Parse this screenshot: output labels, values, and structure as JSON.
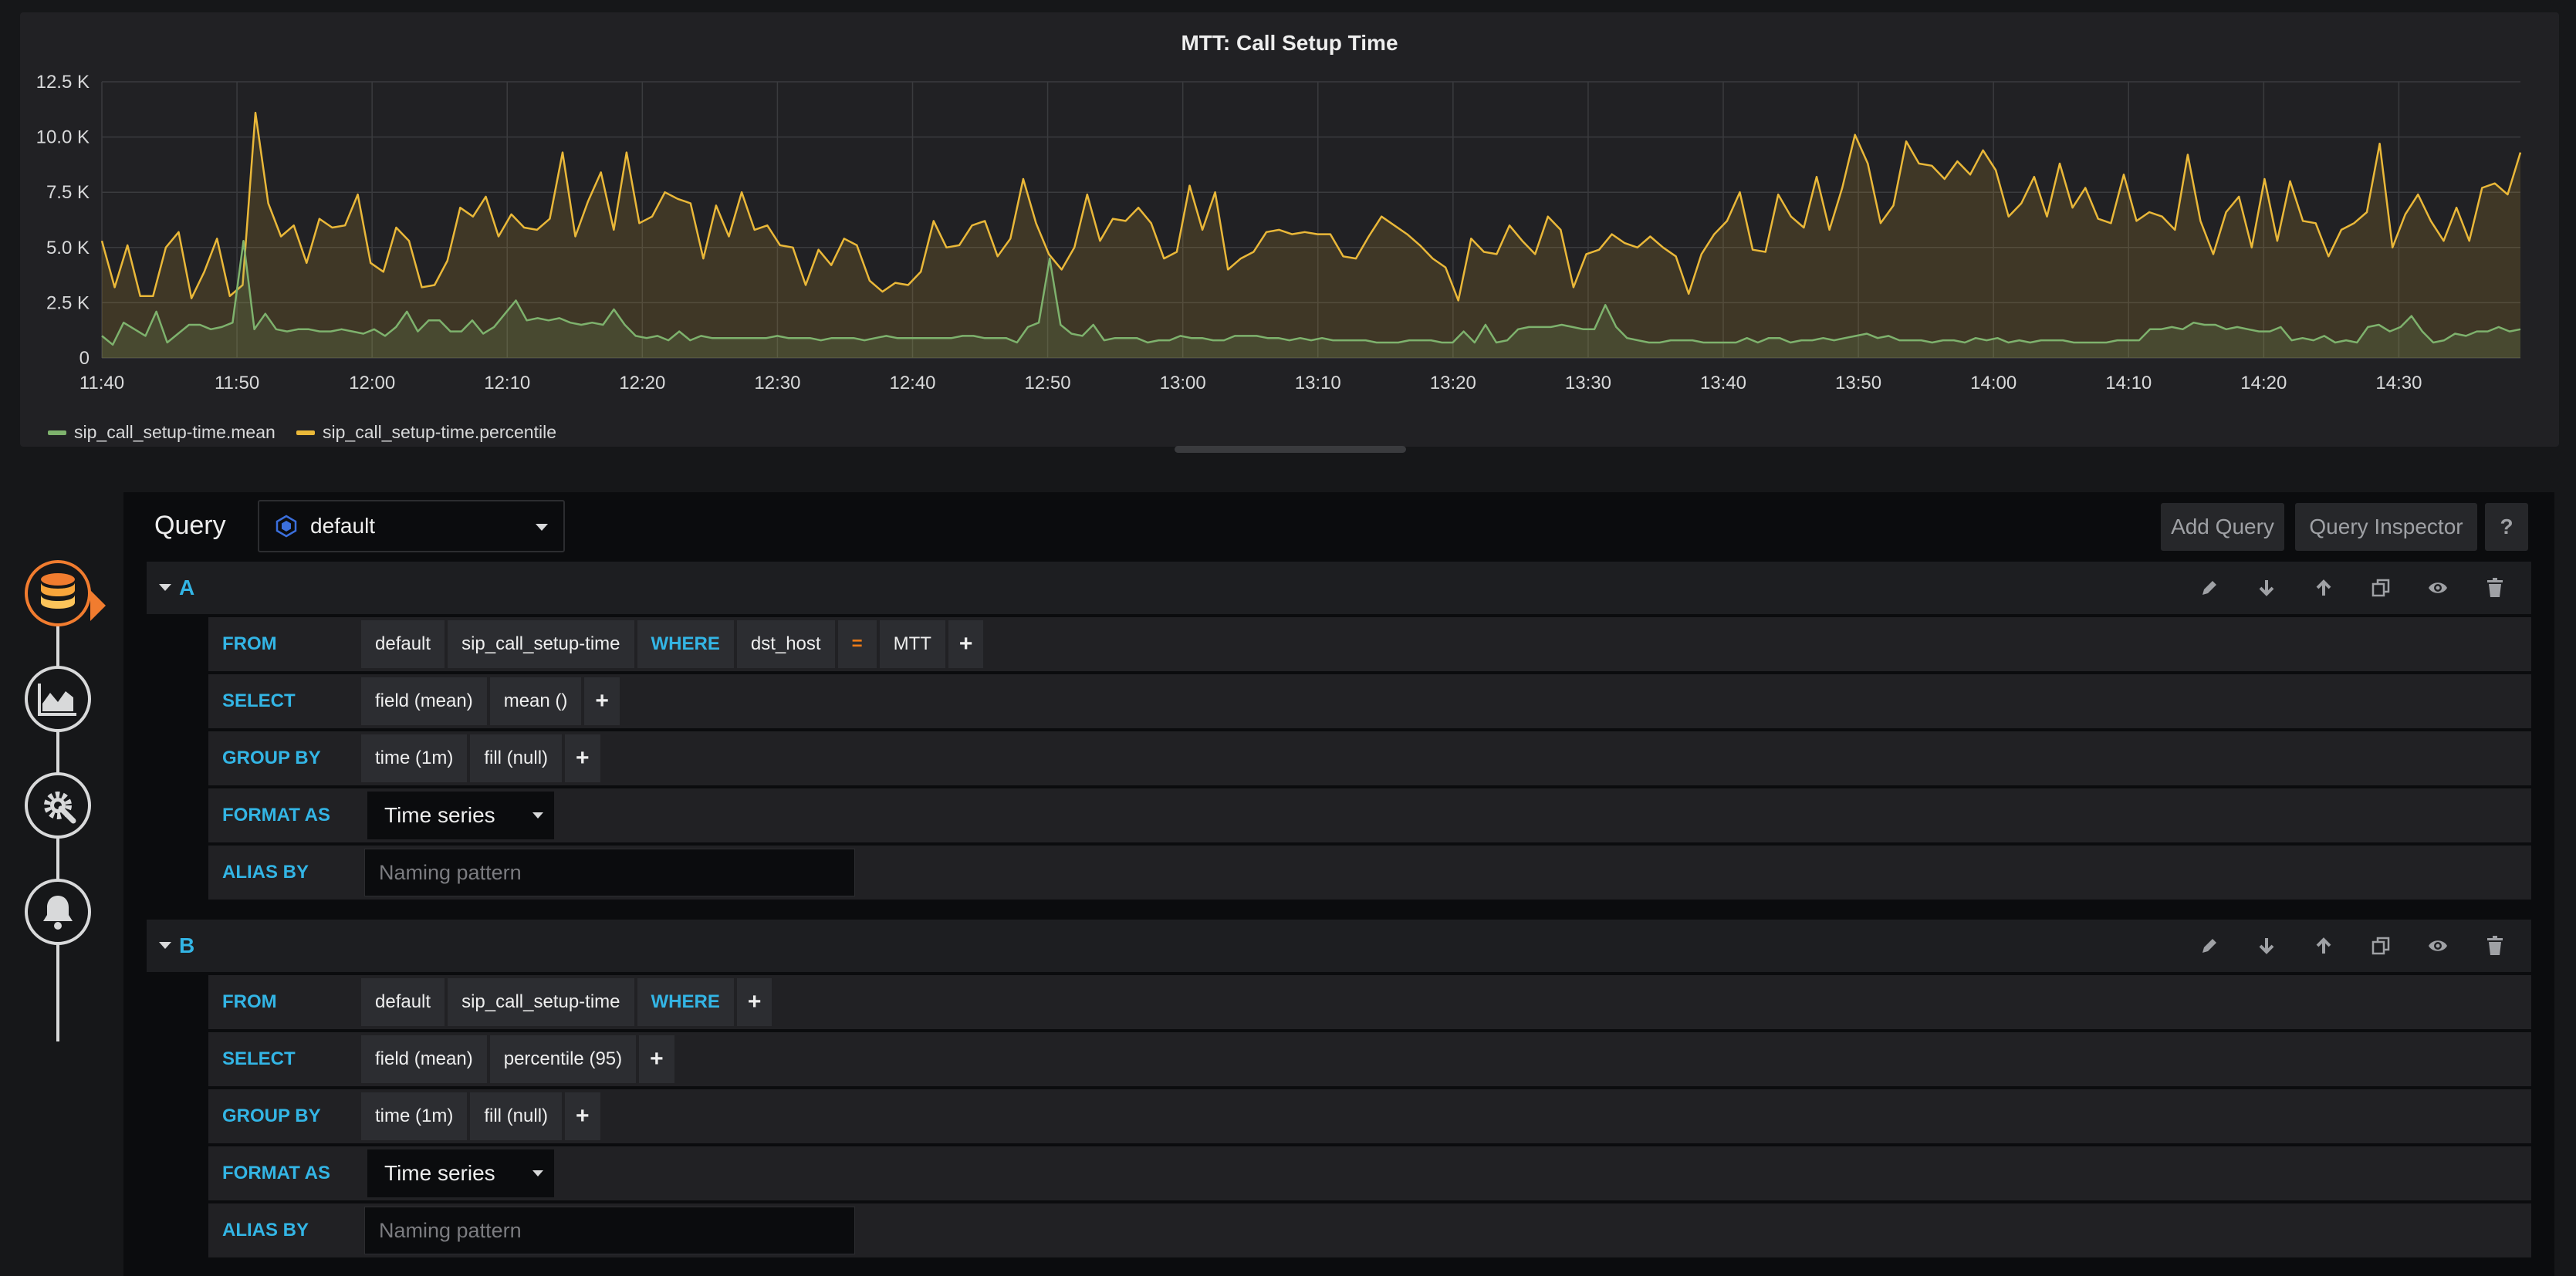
{
  "panel": {
    "title": "MTT: Call Setup Time"
  },
  "colors": {
    "mean": "#7eb26d",
    "percentile": "#eab839",
    "accent": "#33b5e5",
    "active_nav": "#f17c2f"
  },
  "chart_data": {
    "type": "area",
    "title": "MTT: Call Setup Time",
    "y_ticks": [
      "0",
      "2.5 K",
      "5.0 K",
      "7.5 K",
      "10.0 K",
      "12.5 K"
    ],
    "ylim": [
      0,
      12500
    ],
    "x_ticks": [
      "11:40",
      "11:50",
      "12:00",
      "12:10",
      "12:20",
      "12:30",
      "12:40",
      "12:50",
      "13:00",
      "13:10",
      "13:20",
      "13:30",
      "13:40",
      "13:50",
      "14:00",
      "14:10",
      "14:20",
      "14:30"
    ],
    "xlim": [
      "11:40",
      "14:39"
    ],
    "grid": true,
    "legend_position": "bottom-left",
    "series": [
      {
        "name": "sip_call_setup-time.mean",
        "color": "#7eb26d",
        "values": [
          1000,
          600,
          1600,
          1300,
          1000,
          2100,
          700,
          1100,
          1500,
          1500,
          1300,
          1400,
          1600,
          5300,
          1300,
          2000,
          1300,
          1200,
          1300,
          1300,
          1200,
          1200,
          1300,
          1200,
          1100,
          1300,
          1000,
          1400,
          2100,
          1200,
          1700,
          1700,
          1200,
          1200,
          1700,
          1100,
          1400,
          2000,
          2600,
          1700,
          1800,
          1700,
          1800,
          1600,
          1500,
          1600,
          1500,
          2200,
          1500,
          1000,
          900,
          1000,
          800,
          1200,
          800,
          1000,
          900,
          900,
          900,
          900,
          900,
          900,
          1000,
          900,
          900,
          900,
          800,
          900,
          900,
          900,
          800,
          900,
          1000,
          900,
          900,
          900,
          900,
          900,
          900,
          1000,
          1000,
          900,
          900,
          900,
          700,
          1400,
          1600,
          4500,
          1500,
          1100,
          1000,
          1500,
          800,
          900,
          900,
          900,
          700,
          800,
          800,
          1000,
          900,
          900,
          800,
          800,
          1000,
          1000,
          1000,
          900,
          900,
          800,
          900,
          800,
          900,
          800,
          800,
          800,
          800,
          700,
          700,
          700,
          800,
          800,
          800,
          700,
          700,
          1200,
          700,
          1500,
          700,
          800,
          1300,
          1400,
          1400,
          1400,
          1500,
          1400,
          1300,
          1300,
          2400,
          1400,
          900,
          800,
          700,
          700,
          800,
          800,
          800,
          700,
          700,
          700,
          700,
          900,
          700,
          900,
          900,
          700,
          800,
          800,
          900,
          800,
          900,
          1000,
          1100,
          900,
          1000,
          800,
          800,
          800,
          700,
          800,
          800,
          700,
          900,
          800,
          900,
          700,
          800,
          700,
          800,
          800,
          800,
          700,
          700,
          700,
          700,
          800,
          800,
          800,
          1300,
          1300,
          1400,
          1300,
          1600,
          1500,
          1500,
          1300,
          1400,
          1300,
          1200,
          1200,
          1400,
          800,
          900,
          800,
          1000,
          700,
          800,
          700,
          1400,
          1500,
          1200,
          1400,
          1900,
          1200,
          700,
          800,
          1100,
          1000,
          1200,
          1200,
          1400,
          1200,
          1300
        ]
      },
      {
        "name": "sip_call_setup-time.percentile",
        "color": "#eab839",
        "values": [
          5300,
          3200,
          5100,
          2800,
          2800,
          5000,
          5700,
          2700,
          3900,
          5400,
          2800,
          3300,
          11100,
          7000,
          5500,
          6000,
          4300,
          6300,
          5900,
          6000,
          7400,
          4300,
          3900,
          5900,
          5300,
          3200,
          3300,
          4400,
          6800,
          6400,
          7300,
          5500,
          6500,
          5900,
          5800,
          6300,
          9300,
          5500,
          7100,
          8400,
          5800,
          9300,
          6100,
          6400,
          7500,
          7200,
          7000,
          4500,
          6900,
          5500,
          7500,
          5800,
          6000,
          5100,
          5000,
          3300,
          4900,
          4200,
          5400,
          5100,
          3500,
          3000,
          3400,
          3300,
          3900,
          6200,
          5000,
          5100,
          6000,
          6200,
          4600,
          5400,
          8100,
          6100,
          4700,
          4000,
          5000,
          7400,
          5300,
          6300,
          6200,
          6800,
          6100,
          4500,
          4800,
          7800,
          5800,
          7500,
          4000,
          4500,
          4800,
          5700,
          5800,
          5600,
          5700,
          5600,
          5600,
          4600,
          4500,
          5500,
          6400,
          6000,
          5600,
          5100,
          4500,
          4100,
          2600,
          5400,
          4800,
          4700,
          6000,
          5300,
          4700,
          6400,
          5800,
          3200,
          4700,
          4900,
          5600,
          5200,
          5000,
          5500,
          5000,
          4600,
          2900,
          4700,
          5600,
          6200,
          7500,
          4900,
          4800,
          7400,
          6400,
          5900,
          8200,
          5800,
          7700,
          10100,
          8800,
          6100,
          6900,
          9800,
          8800,
          8700,
          8100,
          8900,
          8300,
          9400,
          8500,
          6400,
          7000,
          8200,
          6400,
          8800,
          6800,
          7700,
          6300,
          6100,
          8300,
          6200,
          6600,
          6400,
          5800,
          9200,
          6200,
          4700,
          6600,
          7300,
          5000,
          8100,
          5300,
          8000,
          6200,
          6100,
          4600,
          5800,
          6100,
          6600,
          9700,
          5000,
          6500,
          7400,
          6200,
          5300,
          6800,
          5300,
          7700,
          7900,
          7400,
          9300
        ]
      }
    ]
  },
  "editor": {
    "query_label": "Query",
    "datasource": "default",
    "add_query_label": "Add Query",
    "inspector_label": "Query Inspector",
    "help_label": "?",
    "queries": [
      {
        "ref_id": "A",
        "from_label": "FROM",
        "from": [
          "default",
          "sip_call_setup-time"
        ],
        "where_label": "WHERE",
        "where": {
          "key": "dst_host",
          "op": "=",
          "value": "MTT"
        },
        "select_label": "SELECT",
        "select": [
          "field (mean)",
          "mean ()"
        ],
        "group_label": "GROUP BY",
        "group": [
          "time (1m)",
          "fill (null)"
        ],
        "format_label": "FORMAT AS",
        "format": "Time series",
        "alias_label": "ALIAS BY",
        "alias_placeholder": "Naming pattern"
      },
      {
        "ref_id": "B",
        "from_label": "FROM",
        "from": [
          "default",
          "sip_call_setup-time"
        ],
        "where_label": "WHERE",
        "select_label": "SELECT",
        "select": [
          "field (mean)",
          "percentile (95)"
        ],
        "group_label": "GROUP BY",
        "group": [
          "time (1m)",
          "fill (null)"
        ],
        "format_label": "FORMAT AS",
        "format": "Time series",
        "alias_label": "ALIAS BY",
        "alias_placeholder": "Naming pattern"
      }
    ],
    "plus": "+"
  },
  "nav": {
    "icons": [
      "database-icon",
      "visualization-icon",
      "settings-icon",
      "alert-bell-icon"
    ]
  }
}
